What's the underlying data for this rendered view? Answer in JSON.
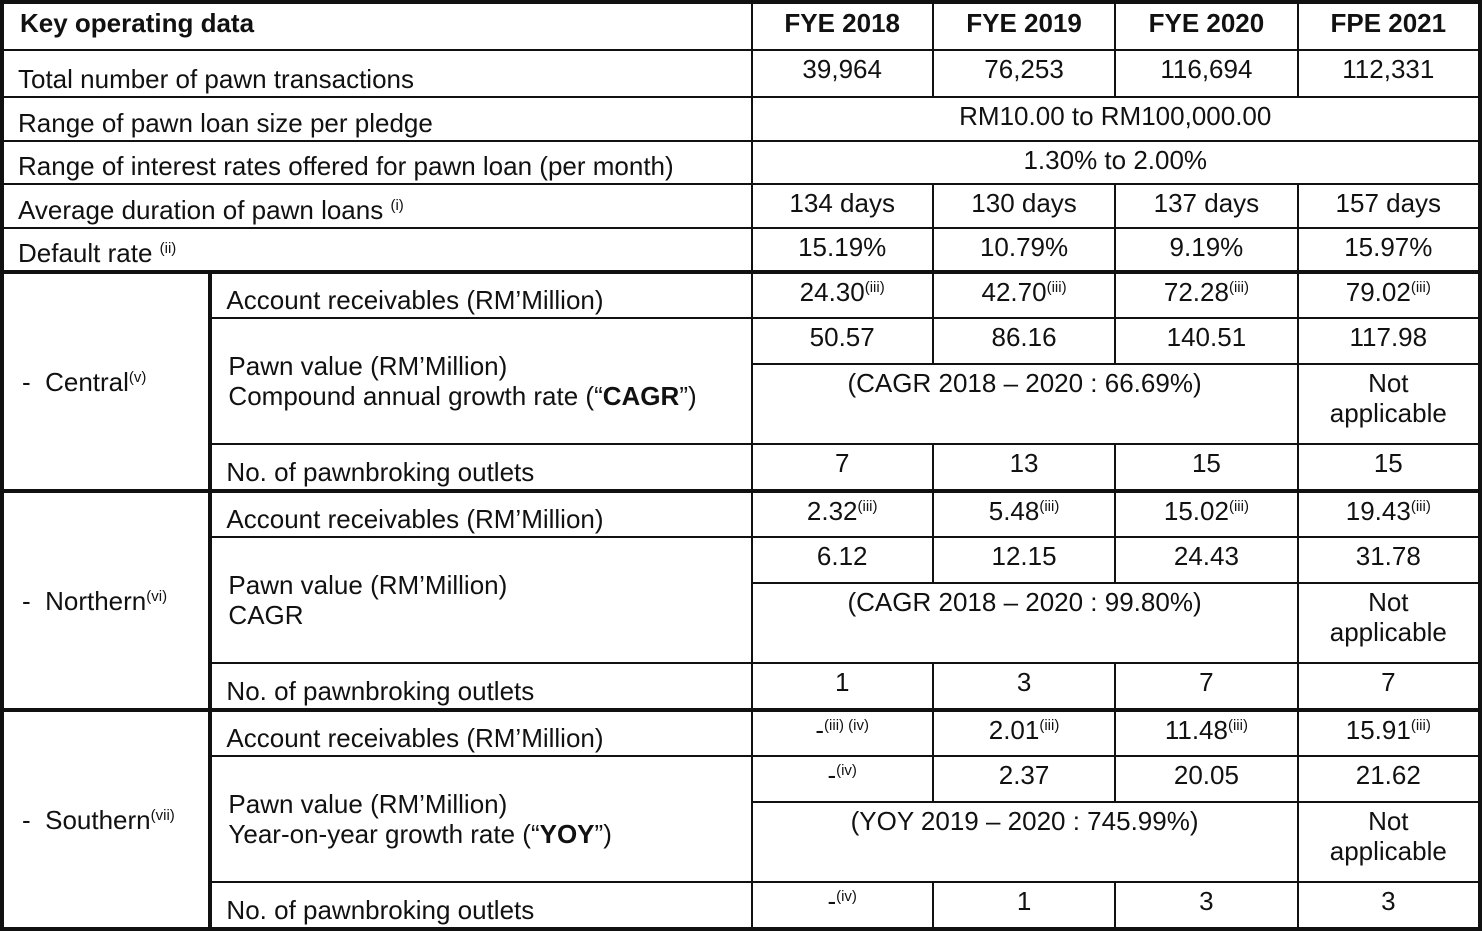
{
  "header": {
    "label": "Key operating data",
    "periods": [
      "FYE 2018",
      "FYE 2019",
      "FYE 2020",
      "FPE 2021"
    ]
  },
  "general_rows": [
    {
      "label": "Total number of pawn transactions",
      "values": [
        "39,964",
        "76,253",
        "116,694",
        "112,331"
      ]
    },
    {
      "label": "Range of pawn loan size per pledge",
      "span_value": "RM10.00 to RM100,000.00"
    },
    {
      "label": "Range of interest rates offered for pawn loan (per month)",
      "span_value": "1.30% to 2.00%"
    },
    {
      "label": "Average duration of pawn loans",
      "note": "(i)",
      "values": [
        "134 days",
        "130 days",
        "137 days",
        "157 days"
      ]
    },
    {
      "label": "Default rate",
      "note": "(ii)",
      "values": [
        "15.19%",
        "10.79%",
        "9.19%",
        "15.97%"
      ]
    }
  ],
  "regions": [
    {
      "name": "-  Central",
      "note": "(v)",
      "receivables": {
        "label": "Account receivables (RM’Million)",
        "values": [
          {
            "text": "24.30",
            "note": "(iii)"
          },
          {
            "text": "42.70",
            "note": "(iii)"
          },
          {
            "text": "72.28",
            "note": "(iii)"
          },
          {
            "text": "79.02",
            "note": "(iii)"
          }
        ]
      },
      "pawn_value": {
        "label": "Pawn value (RM’Million)",
        "growth_label": [
          {
            "text": "Compound annual growth rate (“"
          },
          {
            "text": "CAGR",
            "bold": true
          },
          {
            "text": "”)"
          }
        ],
        "values": [
          "50.57",
          "86.16",
          "140.51",
          "117.98"
        ],
        "growth": "(CAGR 2018 – 2020 : 66.69%)",
        "growth_last": "Not applicable"
      },
      "outlets": {
        "label": "No. of pawnbroking outlets",
        "values": [
          "7",
          "13",
          "15",
          "15"
        ]
      }
    },
    {
      "name": "-  Northern",
      "note": "(vi)",
      "receivables": {
        "label": "Account receivables (RM’Million)",
        "values": [
          {
            "text": "2.32",
            "note": "(iii)"
          },
          {
            "text": "5.48",
            "note": "(iii)"
          },
          {
            "text": "15.02",
            "note": "(iii)"
          },
          {
            "text": "19.43",
            "note": "(iii)"
          }
        ]
      },
      "pawn_value": {
        "label": "Pawn value (RM’Million)",
        "growth_label": [
          {
            "text": "CAGR"
          }
        ],
        "values": [
          "6.12",
          "12.15",
          "24.43",
          "31.78"
        ],
        "growth": "(CAGR 2018 – 2020 : 99.80%)",
        "growth_last": "Not applicable"
      },
      "outlets": {
        "label": "No. of pawnbroking outlets",
        "values": [
          "1",
          "3",
          "7",
          "7"
        ]
      }
    },
    {
      "name": "-  Southern",
      "note": "(vii)",
      "receivables": {
        "label": "Account receivables (RM’Million)",
        "values": [
          {
            "text": "-",
            "note": "(iii) (iv)"
          },
          {
            "text": "2.01",
            "note": "(iii)"
          },
          {
            "text": "11.48",
            "note": "(iii)"
          },
          {
            "text": "15.91",
            "note": "(iii)"
          }
        ]
      },
      "pawn_value": {
        "label": "Pawn value (RM’Million)",
        "growth_label": [
          {
            "text": "Year-on-year growth rate (“"
          },
          {
            "text": "YOY",
            "bold": true
          },
          {
            "text": "”)"
          }
        ],
        "values": [
          {
            "text": "-",
            "note": "(iv)"
          },
          "2.37",
          "20.05",
          "21.62"
        ],
        "growth": "(YOY 2019 – 2020 : 745.99%)",
        "growth_last": "Not applicable"
      },
      "outlets": {
        "label": "No. of pawnbroking outlets",
        "values": [
          {
            "text": "-",
            "note": "(iv)"
          },
          "1",
          "3",
          "3"
        ]
      }
    }
  ]
}
